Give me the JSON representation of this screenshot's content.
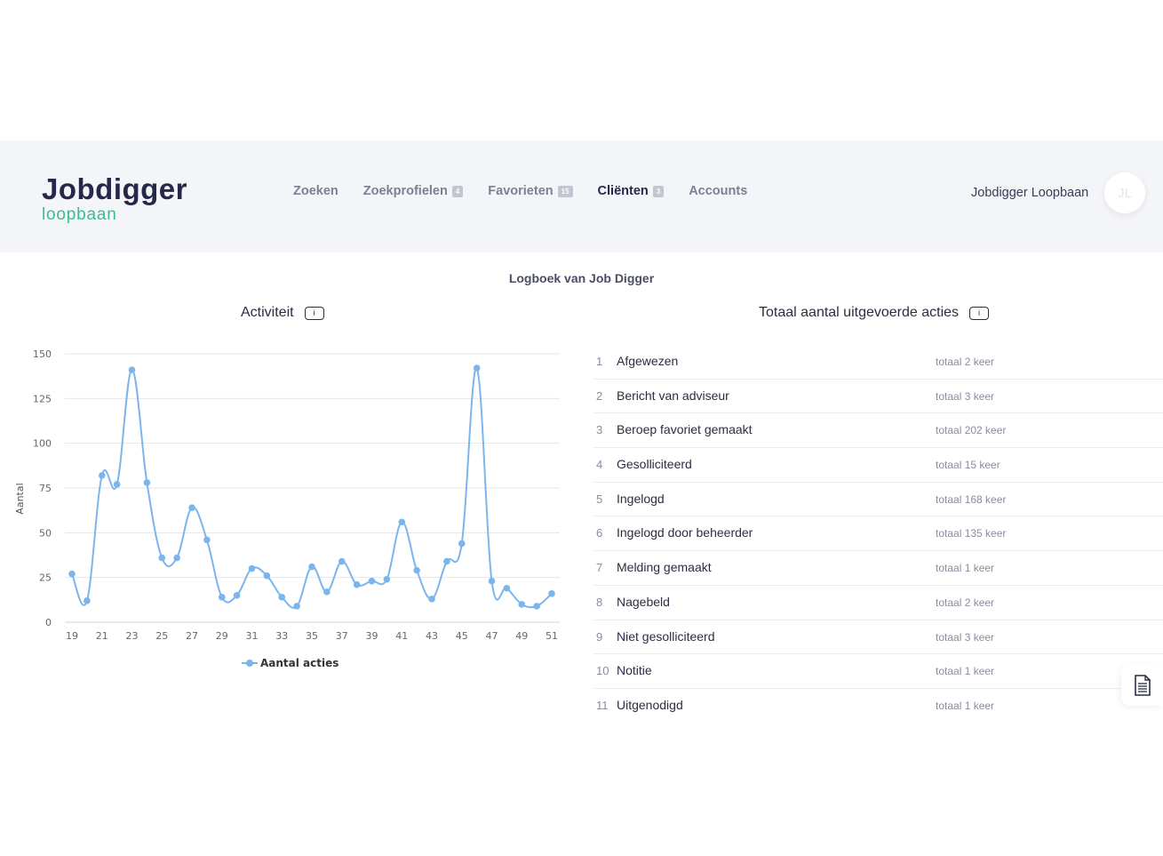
{
  "header": {
    "logo_main": "Jobdigger",
    "logo_sub": "loopbaan",
    "nav": [
      {
        "label": "Zoeken",
        "badge": null,
        "active": false
      },
      {
        "label": "Zoekprofielen",
        "badge": "4",
        "active": false
      },
      {
        "label": "Favorieten",
        "badge": "15",
        "active": false
      },
      {
        "label": "Cliënten",
        "badge": "3",
        "active": true
      },
      {
        "label": "Accounts",
        "badge": null,
        "active": false
      }
    ],
    "user_name": "Jobdigger Loopbaan",
    "avatar_initials": "JL"
  },
  "page_title": "Logboek van Job Digger",
  "activity": {
    "title": "Activiteit",
    "info_icon": "i"
  },
  "totals": {
    "title": "Totaal aantal uitgevoerde acties",
    "info_icon": "i",
    "items": [
      {
        "num": "1",
        "label": "Afgewezen",
        "count": "totaal 2 keer"
      },
      {
        "num": "2",
        "label": "Bericht van adviseur",
        "count": "totaal 3 keer"
      },
      {
        "num": "3",
        "label": "Beroep favoriet gemaakt",
        "count": "totaal 202 keer"
      },
      {
        "num": "4",
        "label": "Gesolliciteerd",
        "count": "totaal 15 keer"
      },
      {
        "num": "5",
        "label": "Ingelogd",
        "count": "totaal 168 keer"
      },
      {
        "num": "6",
        "label": "Ingelogd door beheerder",
        "count": "totaal 135 keer"
      },
      {
        "num": "7",
        "label": "Melding gemaakt",
        "count": "totaal 1 keer"
      },
      {
        "num": "8",
        "label": "Nagebeld",
        "count": "totaal 2 keer"
      },
      {
        "num": "9",
        "label": "Niet gesolliciteerd",
        "count": "totaal 3 keer"
      },
      {
        "num": "10",
        "label": "Notitie",
        "count": "totaal 1 keer"
      },
      {
        "num": "11",
        "label": "Uitgenodigd",
        "count": "totaal 1 keer"
      }
    ]
  },
  "doc_button_icon": "document-icon",
  "colors": {
    "accent": "#3dbb8a",
    "brand": "#26284a",
    "series": "#7cb5ec",
    "header_bg": "#f4f5f9"
  },
  "chart_data": {
    "type": "line",
    "title": "",
    "xlabel": "",
    "ylabel": "Aantal",
    "x": [
      19,
      20,
      21,
      22,
      23,
      24,
      25,
      26,
      27,
      28,
      29,
      30,
      31,
      32,
      33,
      34,
      35,
      36,
      37,
      38,
      39,
      40,
      41,
      42,
      43,
      44,
      45,
      46,
      47,
      48,
      49,
      50,
      51
    ],
    "x_tick_labels": [
      "19",
      "21",
      "23",
      "25",
      "27",
      "29",
      "31",
      "33",
      "35",
      "37",
      "39",
      "41",
      "43",
      "45",
      "47",
      "49",
      "51"
    ],
    "y_ticks": [
      0,
      25,
      50,
      75,
      100,
      125,
      150
    ],
    "ylim": [
      0,
      150
    ],
    "grid": true,
    "legend": "bottom-center",
    "series": [
      {
        "name": "Aantal acties",
        "values": [
          27,
          12,
          82,
          77,
          141,
          78,
          36,
          36,
          64,
          46,
          14,
          15,
          30,
          26,
          14,
          9,
          31,
          17,
          34,
          21,
          23,
          24,
          56,
          29,
          13,
          34,
          44,
          142,
          23,
          19,
          10,
          9,
          16
        ]
      }
    ]
  }
}
